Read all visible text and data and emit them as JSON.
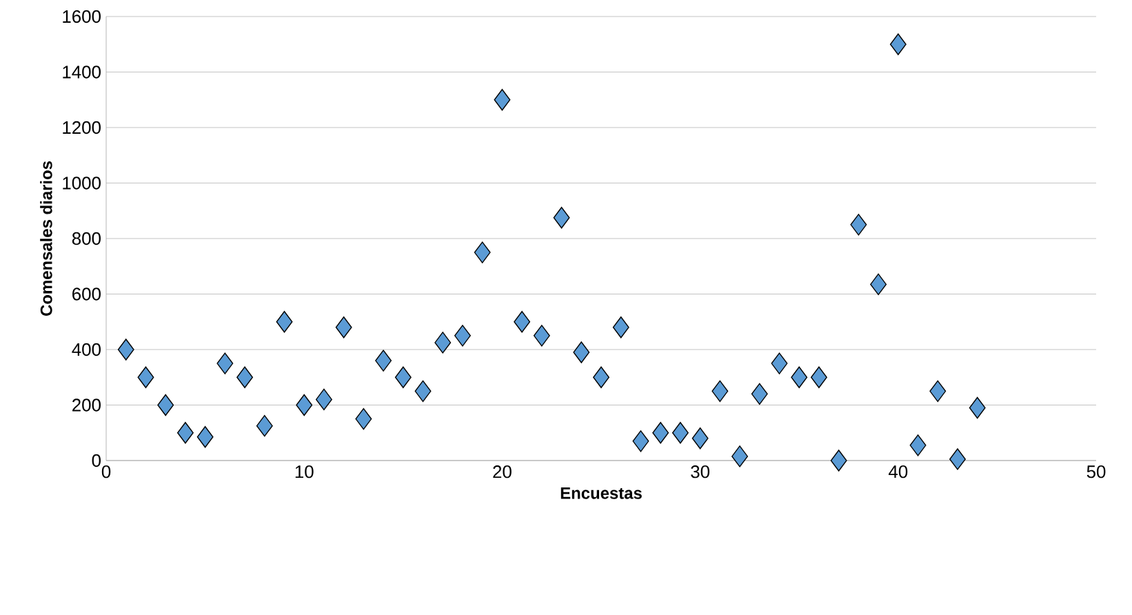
{
  "chart_data": {
    "type": "scatter",
    "xlabel": "Encuestas",
    "ylabel": "Comensales diarios",
    "x": [
      1,
      2,
      3,
      4,
      5,
      6,
      7,
      8,
      9,
      10,
      11,
      12,
      13,
      14,
      15,
      16,
      17,
      18,
      19,
      20,
      21,
      22,
      23,
      24,
      25,
      26,
      27,
      28,
      29,
      30,
      31,
      32,
      33,
      34,
      35,
      36,
      37,
      38,
      39,
      40,
      41,
      42,
      43,
      44
    ],
    "values": [
      400,
      300,
      200,
      100,
      85,
      350,
      300,
      125,
      500,
      200,
      220,
      480,
      150,
      360,
      300,
      250,
      425,
      450,
      750,
      1300,
      500,
      450,
      875,
      390,
      300,
      480,
      70,
      100,
      100,
      80,
      250,
      15,
      240,
      350,
      300,
      300,
      0,
      850,
      635,
      1500,
      55,
      250,
      5,
      190
    ],
    "color": "#5b9bd5",
    "marker": "diamond",
    "grid": "y",
    "xlim": [
      0,
      50
    ],
    "xticks": [
      0,
      10,
      20,
      30,
      40,
      50
    ],
    "ylim": [
      0,
      1600
    ],
    "yticks": [
      0,
      200,
      400,
      600,
      800,
      1000,
      1200,
      1400,
      1600
    ]
  }
}
